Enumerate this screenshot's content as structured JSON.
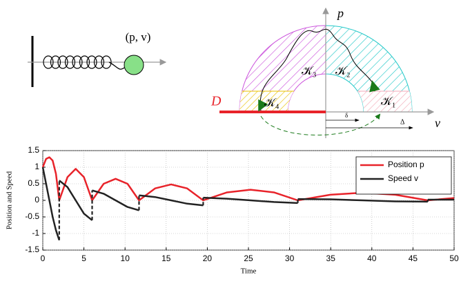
{
  "diagram": {
    "state": "(p, v)",
    "axis_p": "p",
    "axis_v": "v",
    "set_d": "D",
    "k1": "𝒦₁",
    "k2": "𝒦₂",
    "k3": "𝒦₃",
    "k4": "𝒦₄",
    "small_delta": "δ",
    "big_delta": "Δ"
  },
  "chart_data": {
    "type": "line",
    "xlabel": "Time",
    "ylabel": "Position and Speed",
    "x": [
      0,
      0.4,
      0.8,
      1.2,
      1.6,
      2,
      2,
      3,
      4,
      5,
      6,
      6,
      7.4,
      8.85,
      10.3,
      11.7,
      11.7,
      13.65,
      15.6,
      17.55,
      19.5,
      19.5,
      22.4,
      25.25,
      28.1,
      31,
      31,
      34.95,
      38.9,
      42.85,
      46.8,
      46.8,
      50
    ],
    "series": [
      {
        "name": "Position p",
        "color": "#e8232a",
        "values": [
          1,
          1.25,
          1.3,
          1.2,
          0.8,
          0,
          0,
          0.7,
          0.95,
          0.7,
          0,
          0,
          0.5,
          0.65,
          0.5,
          0,
          0,
          0.36,
          0.48,
          0.36,
          0,
          0,
          0.24,
          0.32,
          0.24,
          0,
          0,
          0.17,
          0.23,
          0.17,
          0,
          0,
          0.07
        ]
      },
      {
        "name": "Speed v",
        "color": "#222222",
        "values": [
          1,
          0.5,
          0,
          -0.5,
          -0.9,
          -1.2,
          0.6,
          0.4,
          0,
          -0.4,
          -0.6,
          0.3,
          0.2,
          0,
          -0.2,
          -0.3,
          0.15,
          0.1,
          0,
          -0.1,
          -0.15,
          0.08,
          0.05,
          0,
          -0.05,
          -0.08,
          0.04,
          0.03,
          0,
          -0.03,
          -0.04,
          0.02,
          0.02
        ]
      }
    ],
    "xlim": [
      0,
      50
    ],
    "xticks": [
      0,
      5,
      10,
      15,
      20,
      25,
      30,
      35,
      40,
      45,
      50
    ],
    "ylim": [
      -1.5,
      1.5
    ],
    "yticks": [
      -1.5,
      -1,
      -0.5,
      0,
      0.5,
      1,
      1.5
    ],
    "grid": true,
    "legend": "upper right"
  }
}
